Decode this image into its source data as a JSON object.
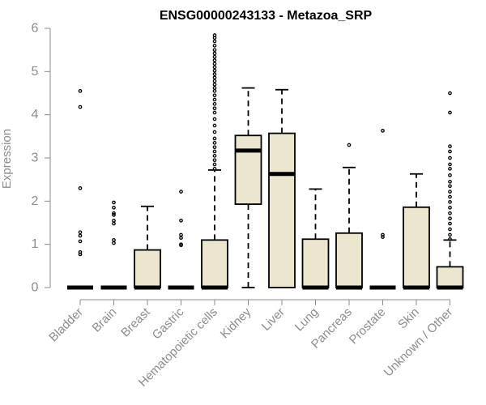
{
  "chart_data": {
    "type": "boxplot",
    "title": "ENSG00000243133 - Metazoa_SRP",
    "xlabel": "",
    "ylabel": "Expression",
    "ylim": [
      0,
      6
    ],
    "yticks": [
      0,
      1,
      2,
      3,
      4,
      5,
      6
    ],
    "box_color": "#ede6cf",
    "categories": [
      "Bladder",
      "Brain",
      "Breast",
      "Gastric",
      "Hematopoietic cells",
      "Kidney",
      "Liver",
      "Lung",
      "Pancreas",
      "Prostate",
      "Skin",
      "Unknown / Other"
    ],
    "boxes": [
      {
        "name": "Bladder",
        "q1": 0,
        "median": 0,
        "q3": 0,
        "whisker_low": 0,
        "whisker_high": 0,
        "outliers": [
          4.55,
          4.18,
          2.3,
          1.28,
          1.2,
          1.07,
          0.82,
          0.77
        ]
      },
      {
        "name": "Brain",
        "q1": 0,
        "median": 0,
        "q3": 0,
        "whisker_low": 0,
        "whisker_high": 0,
        "outliers": [
          1.97,
          1.85,
          1.72,
          1.68,
          1.55,
          1.48,
          1.1,
          1.03
        ]
      },
      {
        "name": "Breast",
        "q1": 0,
        "median": 0,
        "q3": 0.87,
        "whisker_low": 0,
        "whisker_high": 1.88,
        "outliers": []
      },
      {
        "name": "Gastric",
        "q1": 0,
        "median": 0,
        "q3": 0,
        "whisker_low": 0,
        "whisker_high": 0,
        "outliers": [
          2.22,
          1.55,
          1.22,
          1.15,
          1.0,
          0.98
        ]
      },
      {
        "name": "Hematopoietic cells",
        "q1": 0,
        "median": 0,
        "q3": 1.1,
        "whisker_low": 0,
        "whisker_high": 2.72,
        "outliers": [
          2.75,
          2.85,
          2.95,
          3.05,
          3.15,
          3.25,
          3.35,
          3.45,
          3.6,
          3.75,
          3.9,
          4.05,
          4.15,
          4.25,
          4.35,
          4.45,
          4.55,
          4.62,
          4.7,
          4.78,
          4.86,
          4.94,
          5.02,
          5.1,
          5.18,
          5.26,
          5.34,
          5.42,
          5.5,
          5.6,
          5.7,
          5.78,
          5.84
        ]
      },
      {
        "name": "Kidney",
        "q1": 1.93,
        "median": 3.17,
        "q3": 3.52,
        "whisker_low": 0,
        "whisker_high": 4.62,
        "outliers": []
      },
      {
        "name": "Liver",
        "q1": 0,
        "median": 2.63,
        "q3": 3.57,
        "whisker_low": 0,
        "whisker_high": 4.58,
        "outliers": []
      },
      {
        "name": "Lung",
        "q1": 0,
        "median": 0,
        "q3": 1.12,
        "whisker_low": 0,
        "whisker_high": 2.28,
        "outliers": []
      },
      {
        "name": "Pancreas",
        "q1": 0,
        "median": 0,
        "q3": 1.26,
        "whisker_low": 0,
        "whisker_high": 2.78,
        "outliers": [
          3.3
        ]
      },
      {
        "name": "Prostate",
        "q1": 0,
        "median": 0,
        "q3": 0,
        "whisker_low": 0,
        "whisker_high": 0,
        "outliers": [
          3.63,
          1.22,
          1.17
        ]
      },
      {
        "name": "Skin",
        "q1": 0,
        "median": 0,
        "q3": 1.86,
        "whisker_low": 0,
        "whisker_high": 2.63,
        "outliers": []
      },
      {
        "name": "Unknown / Other",
        "q1": 0,
        "median": 0,
        "q3": 0.48,
        "whisker_low": 0,
        "whisker_high": 1.1,
        "outliers": [
          4.5,
          4.05,
          3.27,
          3.15,
          3.0,
          2.85,
          2.75,
          2.6,
          2.45,
          2.35,
          2.22,
          2.1,
          1.98,
          1.85,
          1.72,
          1.6,
          1.48,
          1.35,
          1.22,
          1.12
        ]
      }
    ]
  }
}
